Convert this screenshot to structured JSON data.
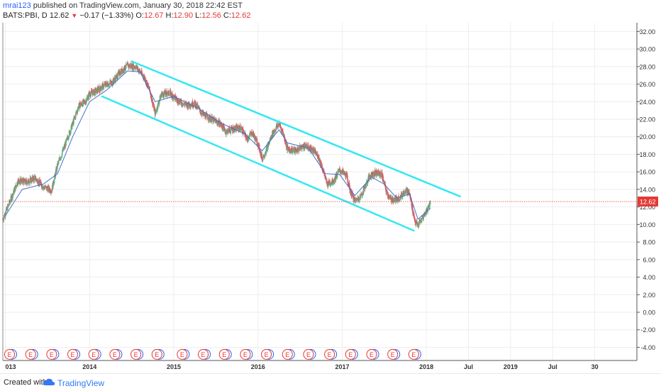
{
  "header": {
    "author": "mrai123",
    "published_text": " published on TradingView.com, January 30, 2018 22:42 EST"
  },
  "quote": {
    "symbol": "BATS:PBI, D",
    "last": "12.62",
    "change": "−0.17 (−1.33%)",
    "open_label": "O:",
    "open": "12.67",
    "high_label": "H:",
    "high": "12.90",
    "low_label": "L:",
    "low": "12.56",
    "close_label": "C:",
    "close": "12.62"
  },
  "footer": {
    "created_with": "Created with",
    "brand": "TradingView"
  },
  "colors": {
    "up": "#53b987",
    "down": "#eb4d5c",
    "channel": "#33e8f2",
    "ma": "#3f6ecb",
    "price_line": "#e53935",
    "grid": "#eeeeee",
    "event_red": "#e53935",
    "event_blue": "#2962ff"
  },
  "icons": {
    "arrow_down": "triangle-down-icon",
    "logo": "tradingview-cloud-icon"
  },
  "chart_data": {
    "type": "candlestick",
    "y_ticks": [
      "32.00",
      "30.00",
      "28.00",
      "26.00",
      "24.00",
      "22.00",
      "20.00",
      "18.00",
      "16.00",
      "14.00",
      "12.00",
      "10.00",
      "8.00",
      "6.00",
      "4.00",
      "2.00",
      "0.00",
      "-2.00",
      "-4.00"
    ],
    "ylim": [
      -5.5,
      33
    ],
    "x_ticks": [
      {
        "label": "013",
        "t": 2013.0
      },
      {
        "label": "2014",
        "t": 2014.0
      },
      {
        "label": "2015",
        "t": 2015.0
      },
      {
        "label": "2016",
        "t": 2016.0
      },
      {
        "label": "2017",
        "t": 2017.0
      },
      {
        "label": "2018",
        "t": 2018.0
      },
      {
        "label": "Jul",
        "t": 2018.5
      },
      {
        "label": "2019",
        "t": 2019.0
      },
      {
        "label": "Jul",
        "t": 2019.5
      },
      {
        "label": "30",
        "t": 2020.0
      }
    ],
    "current_price": 12.62,
    "current_price_label": "12.62",
    "price_path": [
      [
        2012.97,
        10.6
      ],
      [
        2013.05,
        12.5
      ],
      [
        2013.15,
        15.0
      ],
      [
        2013.25,
        14.8
      ],
      [
        2013.35,
        15.3
      ],
      [
        2013.45,
        14.3
      ],
      [
        2013.55,
        13.9
      ],
      [
        2013.62,
        16.8
      ],
      [
        2013.7,
        18.8
      ],
      [
        2013.8,
        21.5
      ],
      [
        2013.87,
        23.5
      ],
      [
        2013.95,
        24.0
      ],
      [
        2014.0,
        24.9
      ],
      [
        2014.08,
        25.2
      ],
      [
        2014.18,
        25.9
      ],
      [
        2014.27,
        26.2
      ],
      [
        2014.35,
        27.2
      ],
      [
        2014.45,
        28.1
      ],
      [
        2014.55,
        28.0
      ],
      [
        2014.65,
        26.8
      ],
      [
        2014.72,
        25.1
      ],
      [
        2014.78,
        22.6
      ],
      [
        2014.85,
        24.8
      ],
      [
        2014.95,
        25.0
      ],
      [
        2015.05,
        24.1
      ],
      [
        2015.15,
        23.6
      ],
      [
        2015.25,
        23.8
      ],
      [
        2015.35,
        22.5
      ],
      [
        2015.45,
        22.0
      ],
      [
        2015.55,
        21.5
      ],
      [
        2015.62,
        20.6
      ],
      [
        2015.7,
        20.9
      ],
      [
        2015.8,
        21.0
      ],
      [
        2015.87,
        19.7
      ],
      [
        2015.93,
        20.5
      ],
      [
        2016.0,
        19.2
      ],
      [
        2016.05,
        17.5
      ],
      [
        2016.1,
        18.5
      ],
      [
        2016.17,
        20.3
      ],
      [
        2016.25,
        21.5
      ],
      [
        2016.3,
        20.4
      ],
      [
        2016.35,
        18.6
      ],
      [
        2016.45,
        18.4
      ],
      [
        2016.55,
        19.0
      ],
      [
        2016.65,
        18.5
      ],
      [
        2016.72,
        17.7
      ],
      [
        2016.77,
        16.3
      ],
      [
        2016.82,
        14.6
      ],
      [
        2016.9,
        15.0
      ],
      [
        2016.97,
        16.2
      ],
      [
        2017.05,
        15.6
      ],
      [
        2017.1,
        13.7
      ],
      [
        2017.15,
        12.7
      ],
      [
        2017.22,
        13.2
      ],
      [
        2017.28,
        14.5
      ],
      [
        2017.33,
        15.6
      ],
      [
        2017.4,
        15.9
      ],
      [
        2017.47,
        15.7
      ],
      [
        2017.52,
        13.9
      ],
      [
        2017.57,
        12.9
      ],
      [
        2017.63,
        12.8
      ],
      [
        2017.7,
        13.2
      ],
      [
        2017.75,
        14.0
      ],
      [
        2017.8,
        13.5
      ],
      [
        2017.84,
        11.5
      ],
      [
        2017.87,
        10.2
      ],
      [
        2017.9,
        9.9
      ],
      [
        2017.94,
        10.5
      ],
      [
        2018.0,
        11.5
      ],
      [
        2018.05,
        12.62
      ]
    ],
    "moving_average": {
      "color": "#3f6ecb",
      "path": [
        [
          2013.0,
          11.0
        ],
        [
          2013.2,
          14.0
        ],
        [
          2013.45,
          14.6
        ],
        [
          2013.62,
          15.8
        ],
        [
          2013.8,
          20.0
        ],
        [
          2014.0,
          24.0
        ],
        [
          2014.2,
          25.3
        ],
        [
          2014.45,
          27.5
        ],
        [
          2014.6,
          27.4
        ],
        [
          2014.78,
          24.0
        ],
        [
          2015.0,
          24.6
        ],
        [
          2015.3,
          23.2
        ],
        [
          2015.55,
          21.6
        ],
        [
          2015.85,
          20.3
        ],
        [
          2016.05,
          18.4
        ],
        [
          2016.25,
          20.8
        ],
        [
          2016.35,
          19.3
        ],
        [
          2016.6,
          18.7
        ],
        [
          2016.8,
          15.8
        ],
        [
          2016.97,
          15.7
        ],
        [
          2017.15,
          13.3
        ],
        [
          2017.35,
          15.4
        ],
        [
          2017.5,
          14.6
        ],
        [
          2017.65,
          13.0
        ],
        [
          2017.8,
          13.5
        ],
        [
          2017.9,
          10.6
        ],
        [
          2018.05,
          11.9
        ]
      ]
    },
    "channel": {
      "color": "#33e8f2",
      "upper": [
        [
          2014.5,
          28.6
        ],
        [
          2018.4,
          13.2
        ]
      ],
      "lower": [
        [
          2014.15,
          24.6
        ],
        [
          2017.85,
          9.3
        ]
      ]
    },
    "events": {
      "label": "E",
      "y": -4.8,
      "t": [
        2013.05,
        2013.3,
        2013.55,
        2013.8,
        2014.05,
        2014.3,
        2014.55,
        2014.8,
        2015.1,
        2015.35,
        2015.6,
        2015.85,
        2016.1,
        2016.35,
        2016.6,
        2016.85,
        2017.1,
        2017.35,
        2017.6,
        2017.85
      ]
    }
  }
}
